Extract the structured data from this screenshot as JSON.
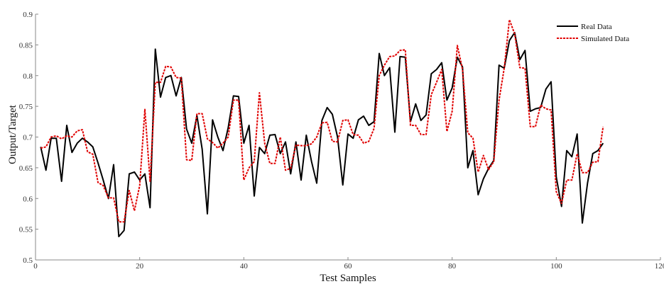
{
  "chart_data": {
    "type": "line",
    "xlabel": "Test Samples",
    "ylabel": "Output/Target",
    "xlim": [
      0,
      120
    ],
    "ylim": [
      0.5,
      0.9
    ],
    "xticks": [
      0,
      20,
      40,
      60,
      80,
      100,
      120
    ],
    "yticks": [
      0.5,
      0.55,
      0.6,
      0.65,
      0.7,
      0.75,
      0.8,
      0.85,
      0.9
    ],
    "grid": false,
    "legend_position": "top-right",
    "x": [
      1,
      2,
      3,
      4,
      5,
      6,
      7,
      8,
      9,
      10,
      11,
      12,
      13,
      14,
      15,
      16,
      17,
      18,
      19,
      20,
      21,
      22,
      23,
      24,
      25,
      26,
      27,
      28,
      29,
      30,
      31,
      32,
      33,
      34,
      35,
      36,
      37,
      38,
      39,
      40,
      41,
      42,
      43,
      44,
      45,
      46,
      47,
      48,
      49,
      50,
      51,
      52,
      53,
      54,
      55,
      56,
      57,
      58,
      59,
      60,
      61,
      62,
      63,
      64,
      65,
      66,
      67,
      68,
      69,
      70,
      71,
      72,
      73,
      74,
      75,
      76,
      77,
      78,
      79,
      80,
      81,
      82,
      83,
      84,
      85,
      86,
      87,
      88,
      89,
      90,
      91,
      92,
      93,
      94,
      95,
      96,
      97,
      98,
      99,
      100,
      101,
      102,
      103,
      104,
      105,
      106,
      107,
      108,
      109
    ],
    "series": [
      {
        "name": "Real Data",
        "color": "#000000",
        "values": [
          0.684,
          0.646,
          0.698,
          0.698,
          0.628,
          0.719,
          0.675,
          0.69,
          0.698,
          0.692,
          0.684,
          0.658,
          0.63,
          0.6,
          0.655,
          0.538,
          0.548,
          0.64,
          0.643,
          0.63,
          0.64,
          0.585,
          0.843,
          0.765,
          0.797,
          0.8,
          0.767,
          0.797,
          0.713,
          0.69,
          0.735,
          0.68,
          0.575,
          0.728,
          0.7,
          0.678,
          0.715,
          0.767,
          0.766,
          0.69,
          0.719,
          0.604,
          0.683,
          0.673,
          0.703,
          0.704,
          0.673,
          0.692,
          0.64,
          0.692,
          0.63,
          0.703,
          0.66,
          0.625,
          0.727,
          0.748,
          0.737,
          0.7,
          0.622,
          0.705,
          0.698,
          0.728,
          0.734,
          0.719,
          0.725,
          0.836,
          0.8,
          0.813,
          0.708,
          0.831,
          0.83,
          0.725,
          0.754,
          0.727,
          0.736,
          0.803,
          0.81,
          0.821,
          0.76,
          0.78,
          0.83,
          0.814,
          0.65,
          0.678,
          0.606,
          0.632,
          0.649,
          0.662,
          0.817,
          0.812,
          0.857,
          0.87,
          0.826,
          0.841,
          0.742,
          0.746,
          0.748,
          0.778,
          0.79,
          0.635,
          0.587,
          0.678,
          0.668,
          0.705,
          0.56,
          0.625,
          0.673,
          0.678,
          0.69
        ]
      },
      {
        "name": "Simulated Data",
        "color": "#e00000",
        "values": [
          0.682,
          0.684,
          0.7,
          0.702,
          0.697,
          0.702,
          0.7,
          0.71,
          0.712,
          0.676,
          0.672,
          0.626,
          0.621,
          0.601,
          0.601,
          0.562,
          0.562,
          0.613,
          0.58,
          0.621,
          0.745,
          0.628,
          0.789,
          0.789,
          0.815,
          0.814,
          0.797,
          0.796,
          0.663,
          0.662,
          0.738,
          0.738,
          0.697,
          0.691,
          0.682,
          0.69,
          0.7,
          0.76,
          0.76,
          0.63,
          0.65,
          0.66,
          0.772,
          0.69,
          0.657,
          0.657,
          0.7,
          0.646,
          0.649,
          0.687,
          0.686,
          0.686,
          0.689,
          0.7,
          0.723,
          0.724,
          0.693,
          0.692,
          0.727,
          0.728,
          0.704,
          0.703,
          0.69,
          0.693,
          0.714,
          0.8,
          0.817,
          0.831,
          0.832,
          0.841,
          0.842,
          0.719,
          0.719,
          0.704,
          0.704,
          0.769,
          0.789,
          0.81,
          0.709,
          0.742,
          0.849,
          0.81,
          0.707,
          0.698,
          0.643,
          0.67,
          0.647,
          0.66,
          0.76,
          0.812,
          0.891,
          0.868,
          0.813,
          0.812,
          0.717,
          0.717,
          0.752,
          0.746,
          0.744,
          0.611,
          0.592,
          0.63,
          0.63,
          0.673,
          0.642,
          0.642,
          0.659,
          0.66,
          0.717
        ]
      }
    ]
  }
}
